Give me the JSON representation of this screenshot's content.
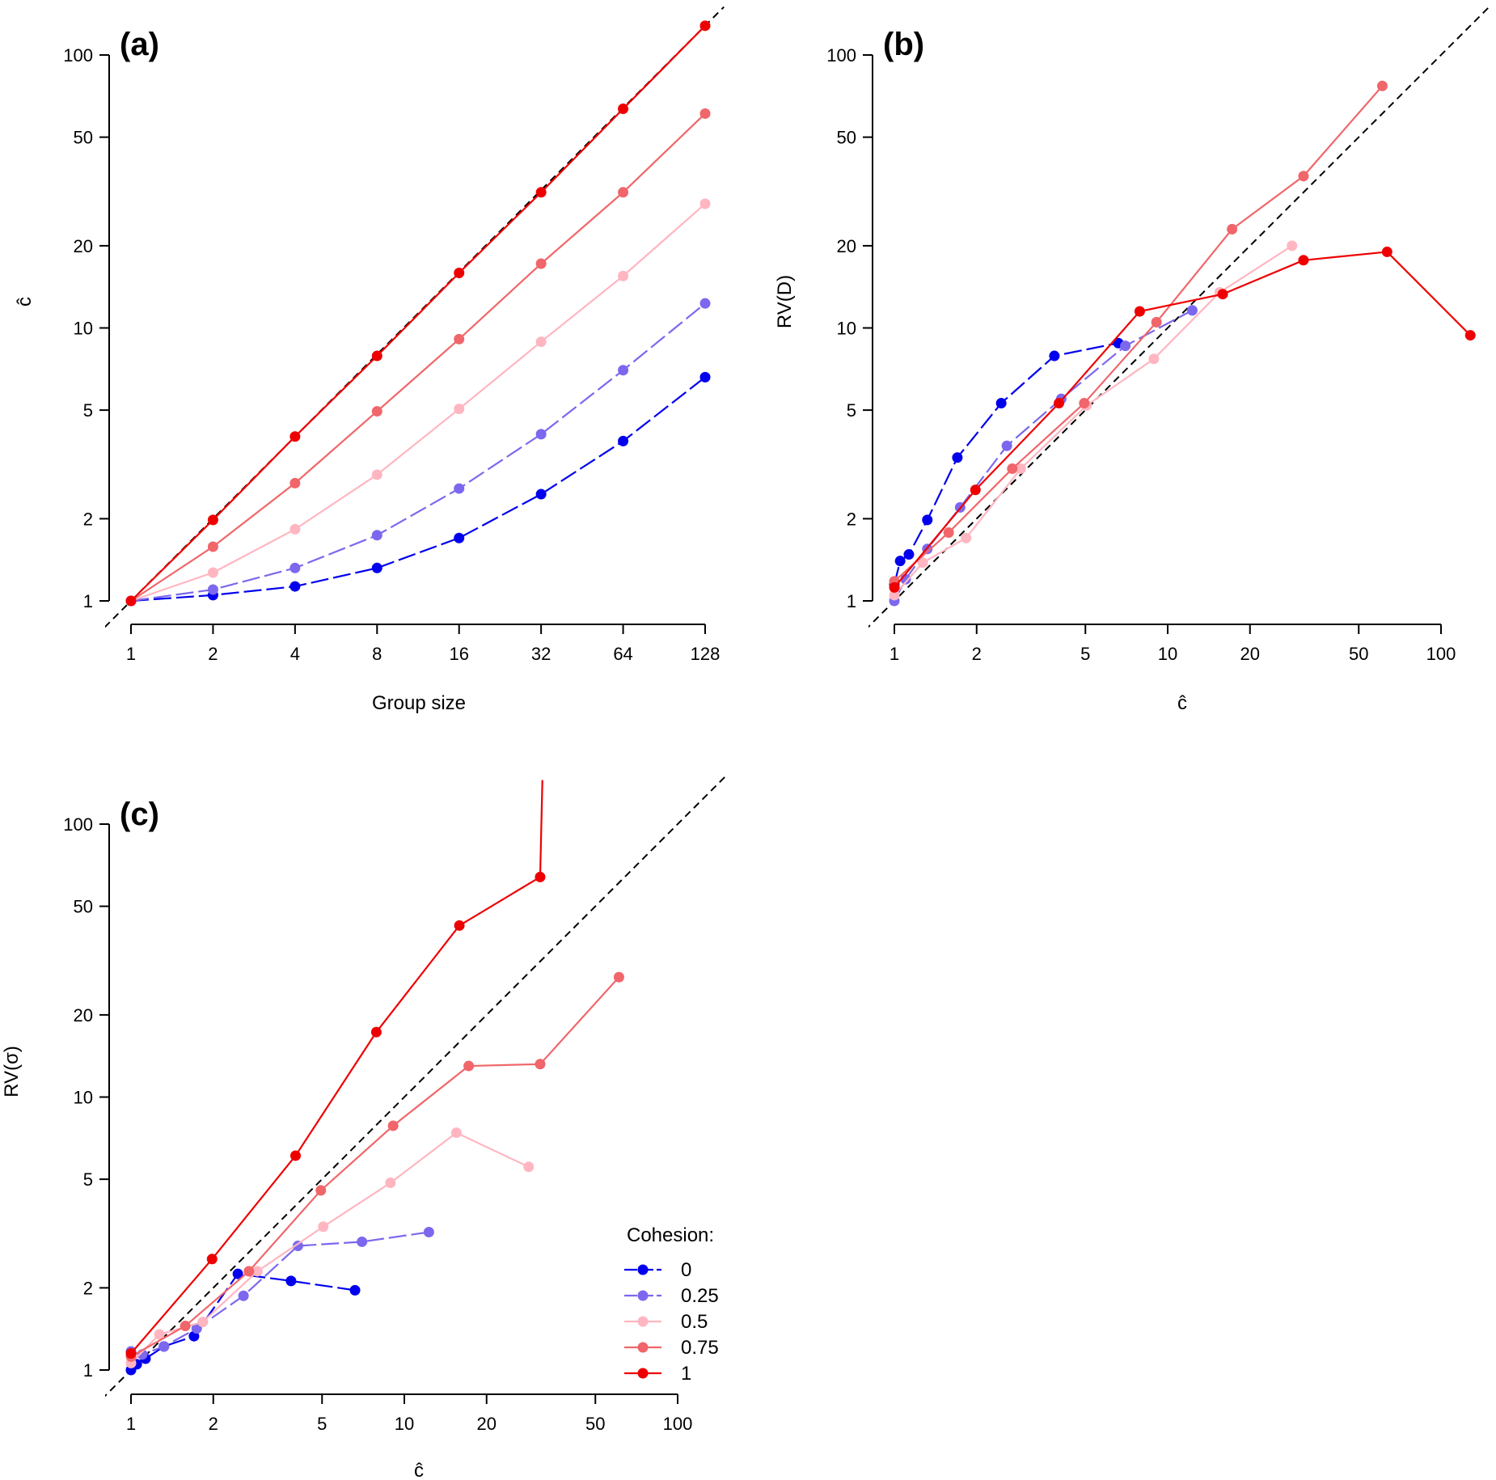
{
  "chart_data": [
    {
      "type": "line",
      "panel_label": "(a)",
      "xlabel": "Group size",
      "ylabel": "ĉ",
      "log_x": true,
      "log_y": true,
      "xlim": [
        1,
        128
      ],
      "ylim": [
        1,
        100
      ],
      "xticks": [
        "1",
        "2",
        "4",
        "8",
        "16",
        "32",
        "64",
        "128"
      ],
      "yticks": [
        "1",
        "2",
        "5",
        "10",
        "20",
        "50",
        "100"
      ],
      "reference_line": "y = x",
      "series": [
        {
          "name": "0",
          "color": "#0000ee",
          "dash": "long-dash",
          "x": [
            1,
            2,
            4,
            8,
            16,
            32,
            64,
            128
          ],
          "y": [
            1.0,
            1.05,
            1.13,
            1.32,
            1.7,
            2.46,
            3.85,
            6.6
          ]
        },
        {
          "name": "0.25",
          "color": "#7b68ee",
          "dash": "long-dash",
          "x": [
            1,
            2,
            4,
            8,
            16,
            32,
            64,
            128
          ],
          "y": [
            1.0,
            1.1,
            1.32,
            1.74,
            2.58,
            4.08,
            7.0,
            12.3
          ]
        },
        {
          "name": "0.5",
          "color": "#ffb6c1",
          "dash": "solid",
          "x": [
            1,
            2,
            4,
            8,
            16,
            32,
            64,
            128
          ],
          "y": [
            1.0,
            1.27,
            1.83,
            2.9,
            5.05,
            8.9,
            15.5,
            28.5
          ]
        },
        {
          "name": "0.75",
          "color": "#f0666a",
          "dash": "solid",
          "x": [
            1,
            2,
            4,
            8,
            16,
            32,
            64,
            128
          ],
          "y": [
            1.0,
            1.58,
            2.7,
            4.95,
            9.1,
            17.2,
            31.4,
            61.0
          ]
        },
        {
          "name": "1",
          "color": "#ee0000",
          "dash": "solid",
          "x": [
            1,
            2,
            4,
            8,
            16,
            32,
            64,
            128
          ],
          "y": [
            1.0,
            1.98,
            4.0,
            7.9,
            15.9,
            31.4,
            63.5,
            128.0
          ]
        }
      ]
    },
    {
      "type": "line",
      "panel_label": "(b)",
      "xlabel": "ĉ",
      "ylabel": "RV(D)",
      "log_x": true,
      "log_y": true,
      "xlim": [
        1,
        100
      ],
      "ylim": [
        1,
        100
      ],
      "xticks": [
        "1",
        "2",
        "5",
        "10",
        "20",
        "50",
        "100"
      ],
      "yticks": [
        "1",
        "2",
        "5",
        "10",
        "20",
        "50",
        "100"
      ],
      "reference_line": "y = x",
      "series": [
        {
          "name": "0",
          "color": "#0000ee",
          "dash": "long-dash",
          "x": [
            1.0,
            1.05,
            1.13,
            1.32,
            1.7,
            2.46,
            3.85,
            6.6
          ],
          "y": [
            1.15,
            1.4,
            1.48,
            1.98,
            3.35,
            5.3,
            7.9,
            8.8
          ]
        },
        {
          "name": "0.25",
          "color": "#7b68ee",
          "dash": "long-dash",
          "x": [
            1.0,
            1.1,
            1.32,
            1.74,
            2.58,
            4.08,
            7.0,
            12.3
          ],
          "y": [
            1.0,
            1.2,
            1.55,
            2.2,
            3.7,
            5.5,
            8.6,
            11.6
          ]
        },
        {
          "name": "0.5",
          "color": "#ffb6c1",
          "dash": "solid",
          "x": [
            1.0,
            1.27,
            1.83,
            2.9,
            5.05,
            8.9,
            15.5,
            28.5
          ],
          "y": [
            1.05,
            1.38,
            1.7,
            3.05,
            5.2,
            7.7,
            13.5,
            20.0
          ]
        },
        {
          "name": "0.75",
          "color": "#f0666a",
          "dash": "solid",
          "x": [
            1.0,
            1.58,
            2.7,
            4.95,
            9.1,
            17.2,
            31.4,
            61.0
          ],
          "y": [
            1.18,
            1.78,
            3.05,
            5.3,
            10.5,
            23.0,
            36.0,
            77.0
          ]
        },
        {
          "name": "1",
          "color": "#ee0000",
          "dash": "solid",
          "x": [
            1.0,
            1.98,
            4.0,
            7.9,
            15.9,
            31.4,
            63.5,
            128.0
          ],
          "y": [
            1.12,
            2.55,
            5.3,
            11.5,
            13.3,
            17.7,
            19.0,
            9.4
          ]
        }
      ]
    },
    {
      "type": "line",
      "panel_label": "(c)",
      "xlabel": "ĉ",
      "ylabel": "RV(σ)",
      "log_x": true,
      "log_y": true,
      "xlim": [
        1,
        100
      ],
      "ylim": [
        1,
        100
      ],
      "xticks": [
        "1",
        "2",
        "5",
        "10",
        "20",
        "50",
        "100"
      ],
      "yticks": [
        "1",
        "2",
        "5",
        "10",
        "20",
        "50",
        "100"
      ],
      "reference_line": "y = x",
      "series": [
        {
          "name": "0",
          "color": "#0000ee",
          "dash": "long-dash",
          "x": [
            1.0,
            1.05,
            1.13,
            1.32,
            1.7,
            2.46,
            3.85,
            6.6
          ],
          "y": [
            1.0,
            1.05,
            1.1,
            1.22,
            1.33,
            2.25,
            2.12,
            1.96
          ]
        },
        {
          "name": "0.25",
          "color": "#7b68ee",
          "dash": "long-dash",
          "x": [
            1.0,
            1.1,
            1.32,
            1.74,
            2.58,
            4.08,
            7.0,
            12.3
          ],
          "y": [
            1.17,
            1.14,
            1.22,
            1.42,
            1.87,
            2.85,
            2.95,
            3.2
          ]
        },
        {
          "name": "0.5",
          "color": "#ffb6c1",
          "dash": "solid",
          "x": [
            1.0,
            1.27,
            1.83,
            2.9,
            5.05,
            8.9,
            15.5,
            28.5
          ],
          "y": [
            1.06,
            1.35,
            1.5,
            2.3,
            3.35,
            4.85,
            7.4,
            5.55
          ]
        },
        {
          "name": "0.75",
          "color": "#f0666a",
          "dash": "solid",
          "x": [
            1.0,
            1.58,
            2.7,
            4.95,
            9.1,
            17.2,
            31.4,
            61.0
          ],
          "y": [
            1.12,
            1.45,
            2.3,
            4.55,
            7.85,
            13.0,
            13.2,
            27.5
          ]
        },
        {
          "name": "1",
          "color": "#ee0000",
          "dash": "solid",
          "x": [
            1.0,
            1.98,
            4.0,
            7.9,
            15.9,
            31.4,
            32.0
          ],
          "y": [
            1.15,
            2.55,
            6.1,
            17.3,
            42.5,
            64.0,
            145.0
          ],
          "point_x": [
            1.0,
            1.98,
            4.0,
            7.9,
            15.9,
            31.4
          ],
          "point_y": [
            1.15,
            2.55,
            6.1,
            17.3,
            42.5,
            64.0
          ]
        }
      ],
      "legend": {
        "title": "Cohesion:",
        "placement": "bottom-right",
        "entries": [
          "0",
          "0.25",
          "0.5",
          "0.75",
          "1"
        ]
      }
    }
  ]
}
